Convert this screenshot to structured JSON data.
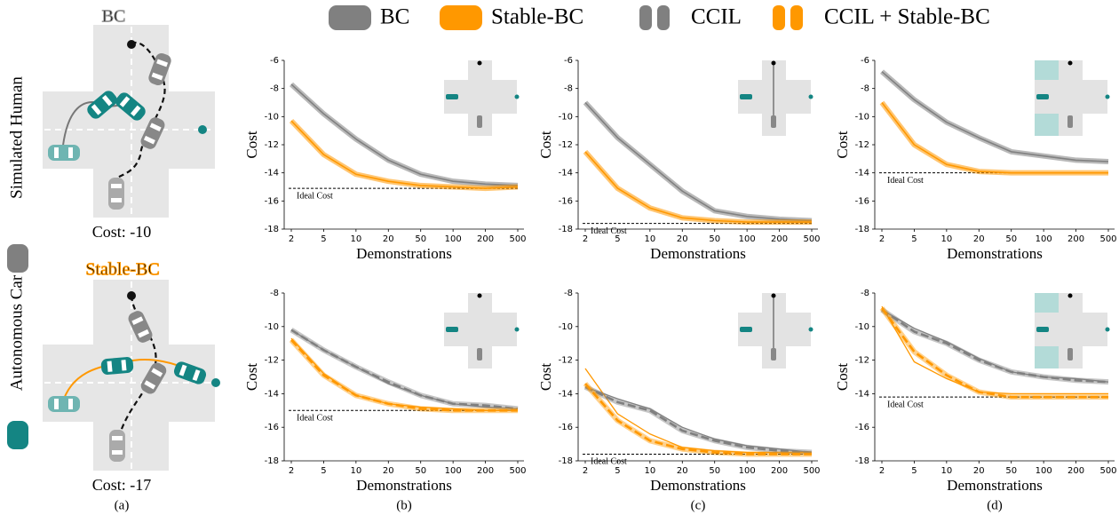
{
  "chart_data": [
    {
      "type": "line",
      "xlabel": "Demonstrations",
      "ylabel": "Cost",
      "categories": [
        "2",
        "5",
        "10",
        "20",
        "50",
        "100",
        "200",
        "500"
      ],
      "ylim": [
        -18,
        -6
      ],
      "yticks": [
        -6,
        -8,
        -10,
        -12,
        -14,
        -16,
        -18
      ],
      "ideal": {
        "value": -15.1,
        "label": "Ideal Cost"
      },
      "series": [
        {
          "name": "BC",
          "color": "#808080",
          "style": "band",
          "values": [
            -7.7,
            -9.8,
            -11.6,
            -13.1,
            -14.1,
            -14.6,
            -14.8,
            -14.9
          ]
        },
        {
          "name": "Stable-BC",
          "color": "#ff9800",
          "style": "band",
          "values": [
            -10.3,
            -12.7,
            -14.1,
            -14.6,
            -14.9,
            -15.0,
            -15.1,
            -15.0
          ]
        }
      ]
    },
    {
      "type": "line",
      "xlabel": "Demonstrations",
      "ylabel": "Cost",
      "categories": [
        "2",
        "5",
        "10",
        "20",
        "50",
        "100",
        "200",
        "500"
      ],
      "ylim": [
        -18,
        -6
      ],
      "yticks": [
        -6,
        -8,
        -10,
        -12,
        -14,
        -16,
        -18
      ],
      "ideal": {
        "value": -17.6,
        "label": "Ideal Cost"
      },
      "series": [
        {
          "name": "BC",
          "color": "#808080",
          "style": "band",
          "values": [
            -9.0,
            -11.5,
            -13.4,
            -15.3,
            -16.7,
            -17.1,
            -17.3,
            -17.4
          ]
        },
        {
          "name": "Stable-BC",
          "color": "#ff9800",
          "style": "band",
          "values": [
            -12.5,
            -15.1,
            -16.5,
            -17.2,
            -17.4,
            -17.5,
            -17.5,
            -17.5
          ]
        }
      ]
    },
    {
      "type": "line",
      "xlabel": "Demonstrations",
      "ylabel": "Cost",
      "categories": [
        "2",
        "5",
        "10",
        "20",
        "50",
        "100",
        "200",
        "500"
      ],
      "ylim": [
        -18,
        -6
      ],
      "yticks": [
        -6,
        -8,
        -10,
        -12,
        -14,
        -16,
        -18
      ],
      "ideal": {
        "value": -14.0,
        "label": "Ideal Cost"
      },
      "series": [
        {
          "name": "BC",
          "color": "#808080",
          "style": "band",
          "values": [
            -6.8,
            -8.8,
            -10.4,
            -11.5,
            -12.5,
            -12.8,
            -13.1,
            -13.2
          ]
        },
        {
          "name": "Stable-BC",
          "color": "#ff9800",
          "style": "band",
          "values": [
            -9.0,
            -12.0,
            -13.4,
            -13.9,
            -14.0,
            -14.0,
            -14.0,
            -14.0
          ]
        }
      ]
    },
    {
      "type": "line",
      "xlabel": "Demonstrations",
      "ylabel": "Cost",
      "categories": [
        "2",
        "5",
        "10",
        "20",
        "50",
        "100",
        "200",
        "500"
      ],
      "ylim": [
        -18,
        -8
      ],
      "yticks": [
        -8,
        -10,
        -12,
        -14,
        -16,
        -18
      ],
      "ideal": {
        "value": -15.0,
        "label": "Ideal Cost"
      },
      "series": [
        {
          "name": "BC",
          "color": "#808080",
          "style": "thin",
          "values": [
            -10.2,
            -11.4,
            -12.4,
            -13.4,
            -14.1,
            -14.6,
            -14.8,
            -14.9
          ]
        },
        {
          "name": "Stable-BC",
          "color": "#ff9800",
          "style": "thin",
          "values": [
            -10.7,
            -12.8,
            -14.1,
            -14.6,
            -14.8,
            -14.9,
            -15.0,
            -15.0
          ]
        },
        {
          "name": "CCIL",
          "color": "#808080",
          "style": "dashed-band",
          "values": [
            -10.2,
            -11.4,
            -12.4,
            -13.3,
            -14.1,
            -14.6,
            -14.7,
            -14.9
          ]
        },
        {
          "name": "CCIL + Stable-BC",
          "color": "#ff9800",
          "style": "dashed-band",
          "values": [
            -10.8,
            -12.9,
            -14.1,
            -14.6,
            -14.9,
            -15.0,
            -15.0,
            -15.0
          ]
        }
      ]
    },
    {
      "type": "line",
      "xlabel": "Demonstrations",
      "ylabel": "Cost",
      "categories": [
        "2",
        "5",
        "10",
        "20",
        "50",
        "100",
        "200",
        "500"
      ],
      "ylim": [
        -18,
        -8
      ],
      "yticks": [
        -8,
        -10,
        -12,
        -14,
        -16,
        -18
      ],
      "ideal": {
        "value": -17.6,
        "label": "Ideal Cost"
      },
      "series": [
        {
          "name": "BC",
          "color": "#808080",
          "style": "thin",
          "values": [
            -13.6,
            -14.3,
            -14.9,
            -16.0,
            -16.7,
            -17.1,
            -17.3,
            -17.5
          ]
        },
        {
          "name": "Stable-BC",
          "color": "#ff9800",
          "style": "thin",
          "values": [
            -12.5,
            -15.2,
            -16.4,
            -17.2,
            -17.4,
            -17.5,
            -17.5,
            -17.5
          ]
        },
        {
          "name": "CCIL",
          "color": "#808080",
          "style": "dashed-band",
          "values": [
            -13.6,
            -14.5,
            -15.0,
            -16.2,
            -16.8,
            -17.2,
            -17.4,
            -17.5
          ]
        },
        {
          "name": "CCIL + Stable-BC",
          "color": "#ff9800",
          "style": "dashed-band",
          "values": [
            -13.4,
            -15.6,
            -16.8,
            -17.3,
            -17.5,
            -17.6,
            -17.6,
            -17.6
          ]
        }
      ]
    },
    {
      "type": "line",
      "xlabel": "Demonstrations",
      "ylabel": "Cost",
      "categories": [
        "2",
        "5",
        "10",
        "20",
        "50",
        "100",
        "200",
        "500"
      ],
      "ylim": [
        -18,
        -8
      ],
      "yticks": [
        -8,
        -10,
        -12,
        -14,
        -16,
        -18
      ],
      "ideal": {
        "value": -14.2,
        "label": "Ideal Cost"
      },
      "series": [
        {
          "name": "BC",
          "color": "#808080",
          "style": "thin",
          "values": [
            -9.0,
            -10.1,
            -10.9,
            -11.9,
            -12.7,
            -13.0,
            -13.1,
            -13.3
          ]
        },
        {
          "name": "Stable-BC",
          "color": "#ff9800",
          "style": "thin",
          "values": [
            -8.8,
            -12.1,
            -13.1,
            -13.9,
            -14.0,
            -14.0,
            -14.0,
            -14.0
          ]
        },
        {
          "name": "CCIL",
          "color": "#808080",
          "style": "dashed-band",
          "values": [
            -9.0,
            -10.3,
            -11.0,
            -12.0,
            -12.7,
            -13.0,
            -13.2,
            -13.3
          ]
        },
        {
          "name": "CCIL + Stable-BC",
          "color": "#ff9800",
          "style": "dashed-band",
          "values": [
            -8.9,
            -11.5,
            -12.9,
            -13.9,
            -14.2,
            -14.2,
            -14.2,
            -14.2
          ]
        }
      ]
    }
  ],
  "panel_a": {
    "top_title": "BC",
    "top_cost": "Cost: -10",
    "bottom_title": "Stable-BC",
    "bottom_cost": "Cost: -17",
    "label": "(a)",
    "human": "Simulated Human",
    "car": "Autonomous Car"
  },
  "panel_labels": [
    "(b)",
    "(c)",
    "(d)"
  ]
}
